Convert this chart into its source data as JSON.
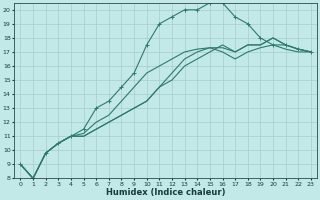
{
  "xlabel": "Humidex (Indice chaleur)",
  "bg_color": "#c2e8e8",
  "line_color": "#2d7a6e",
  "grid_color": "#a8cccc",
  "xlim": [
    -0.5,
    23.5
  ],
  "ylim": [
    8,
    20.5
  ],
  "yticks": [
    8,
    9,
    10,
    11,
    12,
    13,
    14,
    15,
    16,
    17,
    18,
    19,
    20
  ],
  "xticks": [
    0,
    1,
    2,
    3,
    4,
    5,
    6,
    7,
    8,
    9,
    10,
    11,
    12,
    13,
    14,
    15,
    16,
    17,
    18,
    19,
    20,
    21,
    22,
    23
  ],
  "series": [
    {
      "x": [
        0,
        1,
        2,
        3,
        4,
        5,
        6,
        7,
        8,
        9,
        10,
        11,
        12,
        13,
        14,
        15,
        16,
        17,
        18,
        19,
        20,
        21,
        22,
        23
      ],
      "y": [
        9,
        8,
        9.8,
        10.5,
        11,
        11,
        11.5,
        12,
        12.5,
        13,
        13.5,
        14.5,
        15,
        16,
        16.5,
        17,
        17.5,
        17,
        17.5,
        17.5,
        18,
        17.5,
        17.2,
        17
      ],
      "marker": false
    },
    {
      "x": [
        0,
        1,
        2,
        3,
        4,
        5,
        6,
        7,
        8,
        9,
        10,
        11,
        12,
        13,
        14,
        15,
        16,
        17,
        18,
        19,
        20,
        21,
        22,
        23
      ],
      "y": [
        9,
        8,
        9.8,
        10.5,
        11,
        11,
        11.5,
        12,
        12.5,
        13,
        13.5,
        14.5,
        15.5,
        16.5,
        17,
        17.3,
        17.3,
        17,
        17.5,
        17.5,
        18,
        17.5,
        17.2,
        17
      ],
      "marker": false
    },
    {
      "x": [
        0,
        1,
        2,
        3,
        4,
        5,
        6,
        7,
        8,
        9,
        10,
        11,
        12,
        13,
        14,
        15,
        16,
        17,
        18,
        19,
        20,
        21,
        22,
        23
      ],
      "y": [
        9,
        8,
        9.8,
        10.5,
        11,
        11.2,
        12,
        12.5,
        13.5,
        14.5,
        15.5,
        16,
        16.5,
        17,
        17.2,
        17.3,
        17,
        16.5,
        17,
        17.3,
        17.5,
        17.2,
        17,
        17
      ],
      "marker": false
    },
    {
      "x": [
        0,
        1,
        2,
        3,
        4,
        5,
        6,
        7,
        8,
        9,
        10,
        11,
        12,
        13,
        14,
        15,
        16,
        17,
        18,
        19,
        20,
        21,
        22,
        23
      ],
      "y": [
        9,
        8,
        9.8,
        10.5,
        11,
        11.5,
        13,
        13.5,
        14.5,
        15.5,
        17.5,
        19,
        19.5,
        20,
        20,
        20.5,
        20.5,
        19.5,
        19,
        18,
        17.5,
        17.5,
        17.2,
        17
      ],
      "marker": true
    }
  ]
}
